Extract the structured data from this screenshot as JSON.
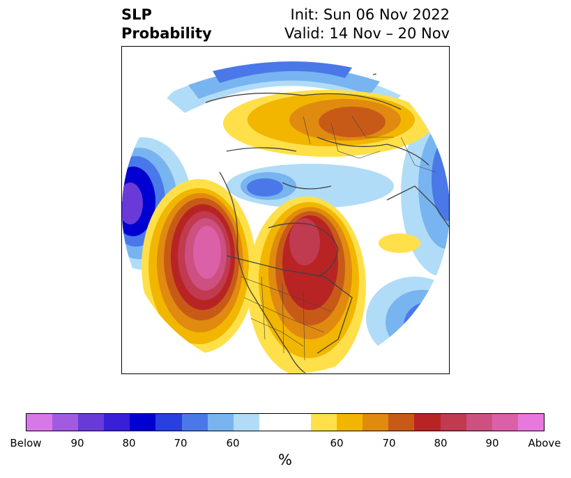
{
  "title": {
    "left_line1": "SLP",
    "left_line2": "Probability",
    "right_line1": "Init: Sun 06 Nov 2022",
    "right_line2": "Valid: 14 Nov – 20 Nov"
  },
  "colorbar": {
    "label": "%",
    "ticks": [
      "Below",
      "90",
      "80",
      "70",
      "60",
      "60",
      "70",
      "80",
      "90",
      "Above"
    ],
    "colors": [
      "#d878e8",
      "#a05be0",
      "#6a3ad8",
      "#3a1fd8",
      "#0000d0",
      "#2a3fe0",
      "#4a78e8",
      "#78b4f0",
      "#b0dcf8",
      "#ffffff",
      "#ffe04a",
      "#f2b600",
      "#e08a10",
      "#c85a18",
      "#b82424",
      "#c03a50",
      "#cc5080",
      "#dc60a8",
      "#e878dc"
    ]
  }
}
